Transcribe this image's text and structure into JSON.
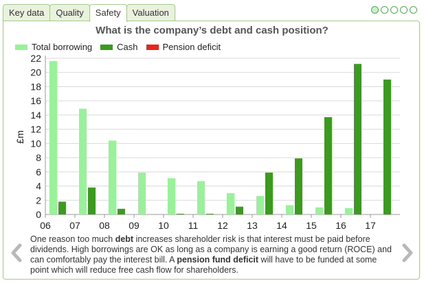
{
  "tabs": [
    {
      "label": "Key data",
      "active": false
    },
    {
      "label": "Quality",
      "active": false
    },
    {
      "label": "Safety",
      "active": true
    },
    {
      "label": "Valuation",
      "active": false
    }
  ],
  "pager": {
    "count": 5,
    "active_index": 0
  },
  "caption": {
    "p1": "One reason too much ",
    "b1": "debt",
    "p2": " increases shareholder risk is that interest must be paid before dividends. High borrowings are OK as long as a company is earning a good return (ROCE) and can comfortably pay the interest bill. A ",
    "b2": "pension fund deficit",
    "p3": " will have to be funded at some point which will reduce free cash flow for shareholders."
  },
  "icons": {
    "prev": "chevron-left-icon",
    "next": "chevron-right-icon"
  },
  "chart_data": {
    "type": "bar",
    "title": "What is the company’s debt and cash position?",
    "ylabel": "£m",
    "xlabel": "",
    "ylim": [
      0,
      22
    ],
    "yticks": [
      0,
      2,
      4,
      6,
      8,
      10,
      12,
      14,
      16,
      18,
      20,
      22
    ],
    "categories": [
      "06",
      "07",
      "08",
      "09",
      "10",
      "11",
      "12",
      "13",
      "14",
      "15",
      "16",
      "17"
    ],
    "grid": true,
    "legend_position": "top-left",
    "series": [
      {
        "name": "Total borrowing",
        "color": "#99f299",
        "values": [
          21.6,
          14.9,
          10.4,
          5.9,
          5.1,
          4.7,
          3.0,
          2.6,
          1.3,
          1.0,
          0.9,
          0
        ]
      },
      {
        "name": "Cash",
        "color": "#3a9b1f",
        "values": [
          1.8,
          3.8,
          0.8,
          0,
          0.1,
          0.1,
          1.1,
          5.9,
          7.9,
          13.7,
          21.2,
          19.0
        ]
      },
      {
        "name": "Pension deficit",
        "color": "#e8261f",
        "values": [
          0,
          0,
          0,
          0,
          0,
          0,
          0,
          0,
          0,
          0,
          0,
          0
        ]
      }
    ]
  }
}
